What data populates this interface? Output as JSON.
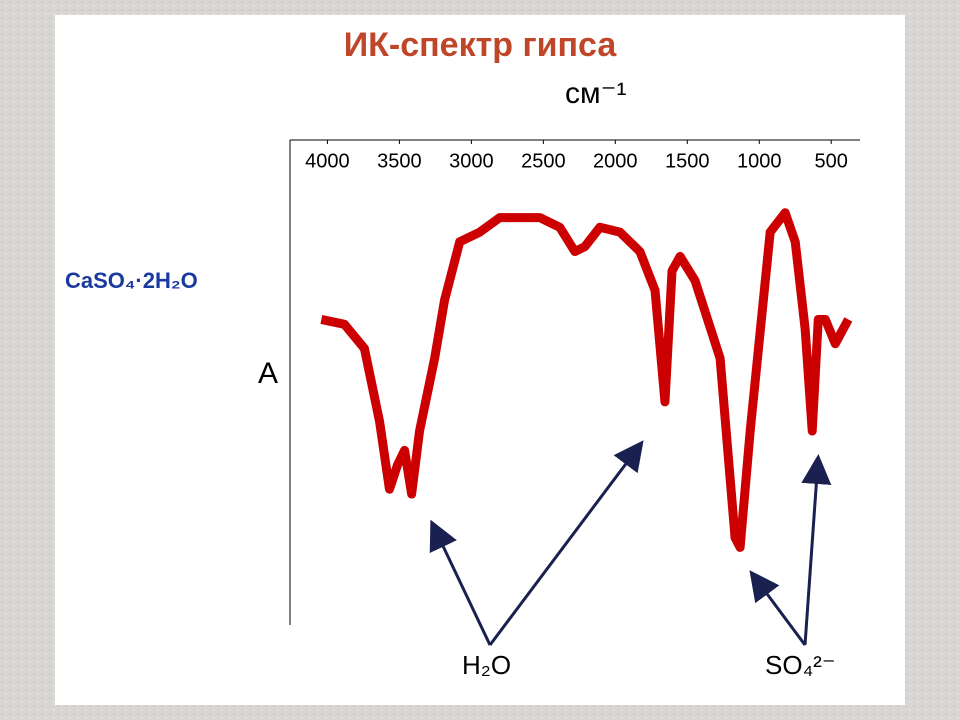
{
  "chart_data": {
    "type": "line",
    "title": "ИК-спектр гипса",
    "x_label": "см⁻¹",
    "y_label": "A",
    "annotations": [
      "CaSO₄·2H₂O",
      "H₂O",
      "SO₄²⁻"
    ],
    "xlim": [
      4260,
      300
    ],
    "xticks": [
      4000,
      3500,
      3000,
      2500,
      2000,
      1500,
      1000,
      500
    ],
    "ylim": [
      0,
      100
    ],
    "series": [
      {
        "color": "#cc0000",
        "x": [
          4042,
          3882,
          3743,
          3638,
          3569,
          3513,
          3464,
          3415,
          3360,
          3255,
          3186,
          3081,
          2942,
          2803,
          2525,
          2386,
          2281,
          2212,
          2107,
          1968,
          1829,
          1724,
          1655,
          1606,
          1550,
          1446,
          1272,
          1168,
          1133,
          1063,
          924,
          820,
          750,
          681,
          632,
          590,
          541,
          472,
          381
        ],
        "values": [
          63,
          62,
          57,
          42,
          28,
          33,
          36,
          27,
          40,
          55,
          67,
          79,
          81,
          84,
          84,
          82,
          77,
          78,
          82,
          81,
          77,
          69,
          46,
          73,
          76,
          71,
          55,
          18,
          16,
          40,
          81,
          85,
          79,
          61,
          40,
          63,
          63,
          58,
          63
        ]
      }
    ]
  }
}
